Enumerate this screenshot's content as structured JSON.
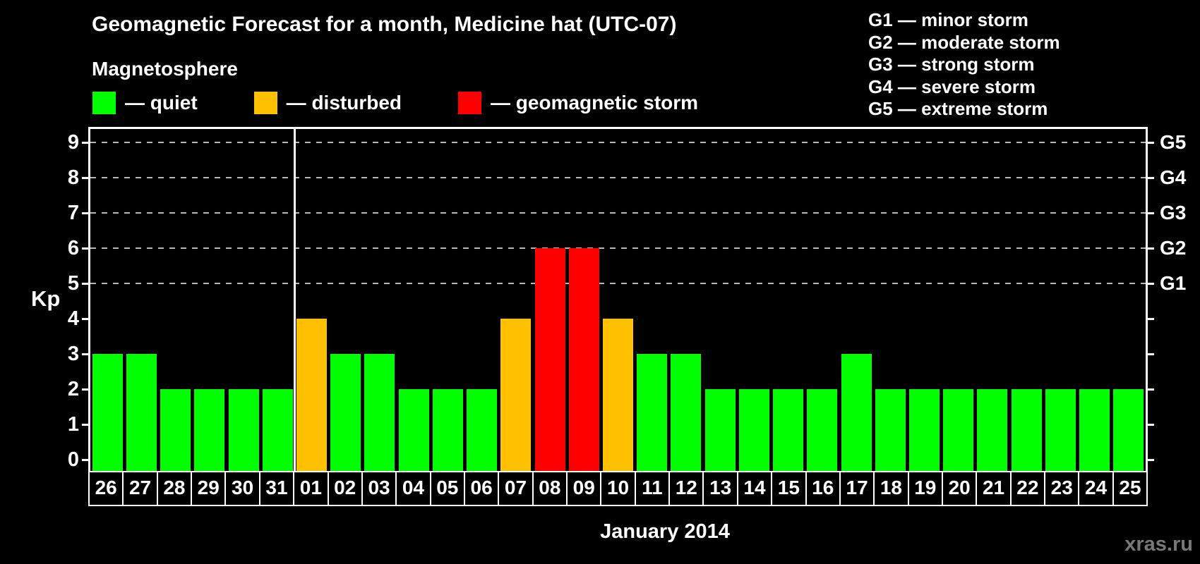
{
  "title": "Geomagnetic Forecast for a month, Medicine hat (UTC-07)",
  "subtitle": "Magnetosphere",
  "status_legend": [
    {
      "name": "quiet",
      "label": "— quiet",
      "color": "#00ff00"
    },
    {
      "name": "disturbed",
      "label": "— disturbed",
      "color": "#ffc000"
    },
    {
      "name": "storm",
      "label": "— geomagnetic storm",
      "color": "#ff0000"
    }
  ],
  "g_scale_legend": [
    "G1 — minor storm",
    "G2 — moderate storm",
    "G3 — strong storm",
    "G4 — severe storm",
    "G5 — extreme storm"
  ],
  "watermark": "xras.ru",
  "chart_data": {
    "type": "bar",
    "title": "Geomagnetic Forecast for a month, Medicine hat (UTC-07)",
    "xlabel": "January 2014",
    "ylabel": "Kp",
    "ylim": [
      0,
      9
    ],
    "y_ticks": [
      0,
      1,
      2,
      3,
      4,
      5,
      6,
      7,
      8,
      9
    ],
    "gridline_levels": [
      5,
      6,
      7,
      8,
      9
    ],
    "right_axis_labels": [
      {
        "level": 5,
        "label": "G1"
      },
      {
        "level": 6,
        "label": "G2"
      },
      {
        "level": 7,
        "label": "G3"
      },
      {
        "level": 8,
        "label": "G4"
      },
      {
        "level": 9,
        "label": "G5"
      }
    ],
    "month_divider_after_index": 5,
    "categories": [
      "26",
      "27",
      "28",
      "29",
      "30",
      "31",
      "01",
      "02",
      "03",
      "04",
      "05",
      "06",
      "07",
      "08",
      "09",
      "10",
      "11",
      "12",
      "13",
      "14",
      "15",
      "16",
      "17",
      "18",
      "19",
      "20",
      "21",
      "22",
      "23",
      "24",
      "25"
    ],
    "values": [
      3,
      3,
      2,
      2,
      2,
      2,
      4,
      3,
      3,
      2,
      2,
      2,
      4,
      6,
      6,
      4,
      3,
      3,
      2,
      2,
      2,
      2,
      3,
      2,
      2,
      2,
      2,
      2,
      2,
      2,
      2
    ],
    "statuses": [
      "quiet",
      "quiet",
      "quiet",
      "quiet",
      "quiet",
      "quiet",
      "disturbed",
      "quiet",
      "quiet",
      "quiet",
      "quiet",
      "quiet",
      "disturbed",
      "storm",
      "storm",
      "disturbed",
      "quiet",
      "quiet",
      "quiet",
      "quiet",
      "quiet",
      "quiet",
      "quiet",
      "quiet",
      "quiet",
      "quiet",
      "quiet",
      "quiet",
      "quiet",
      "quiet",
      "quiet"
    ],
    "status_colors": {
      "quiet": "#00ff00",
      "disturbed": "#ffc000",
      "storm": "#ff0000"
    },
    "legend_position": "top-left",
    "grid": "dashed-horizontal-upper-levels-only"
  }
}
